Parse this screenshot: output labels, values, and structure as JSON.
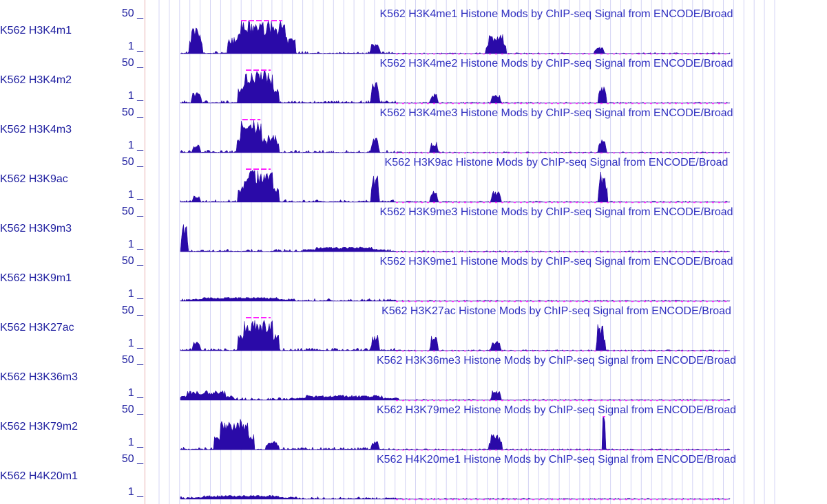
{
  "tracks": [
    {
      "label": "K562 H3K4m1",
      "title": "K562 H3K4me1 Histone Mods by ChIP-seq Signal from ENCODE/Broad",
      "max": "50 _",
      "min": "1 _"
    },
    {
      "label": "K562 H3K4m2",
      "title": "K562 H3K4me2 Histone Mods by ChIP-seq Signal from ENCODE/Broad",
      "max": "50 _",
      "min": "1 _"
    },
    {
      "label": "K562 H3K4m3",
      "title": "K562 H3K4me3 Histone Mods by ChIP-seq Signal from ENCODE/Broad",
      "max": "50 _",
      "min": "1 _"
    },
    {
      "label": "K562 H3K9ac",
      "title": "K562 H3K9ac Histone Mods by ChIP-seq Signal from ENCODE/Broad",
      "max": "50 _",
      "min": "1 _"
    },
    {
      "label": "K562 H3K9m3",
      "title": "K562 H3K9me3 Histone Mods by ChIP-seq Signal from ENCODE/Broad",
      "max": "50 _",
      "min": "1 _"
    },
    {
      "label": "K562 H3K9m1",
      "title": "K562 H3K9me1 Histone Mods by ChIP-seq Signal from ENCODE/Broad",
      "max": "50 _",
      "min": "1 _"
    },
    {
      "label": "K562 H3K27ac",
      "title": "K562 H3K27ac Histone Mods by ChIP-seq Signal from ENCODE/Broad",
      "max": "50 _",
      "min": "1 _"
    },
    {
      "label": "K562 H3K36m3",
      "title": "K562 H3K36me3 Histone Mods by ChIP-seq Signal from ENCODE/Broad",
      "max": "50 _",
      "min": "1 _"
    },
    {
      "label": "K562 H3K79m2",
      "title": "K562 H3K79me2 Histone Mods by ChIP-seq Signal from ENCODE/Broad",
      "max": "50 _",
      "min": "1 _"
    },
    {
      "label": "K562 H4K20m1",
      "title": "K562 H4K20me1 Histone Mods by ChIP-seq Signal from ENCODE/Broad",
      "max": "50 _",
      "min": "1 _"
    }
  ]
}
